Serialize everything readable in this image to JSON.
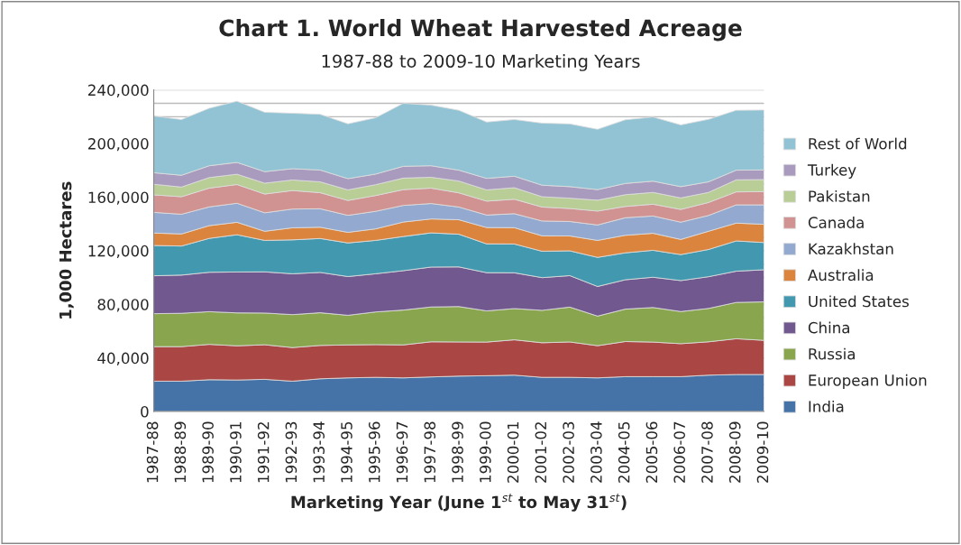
{
  "chart_data": {
    "type": "area",
    "stacked": true,
    "title": "Chart 1. World Wheat Harvested Acreage",
    "subtitle": "1987-88 to 2009-10 Marketing Years",
    "xlabel": "Marketing Year (June 1$^{st}$ to May 31$^{st}$)",
    "ylabel": "1,000 Hectares",
    "categories": [
      "1987-88",
      "1988-89",
      "1989-90",
      "1990-91",
      "1991-92",
      "1992-93",
      "1993-94",
      "1994-95",
      "1995-96",
      "1996-97",
      "1997-98",
      "1998-99",
      "1999-00",
      "2000-01",
      "2001-02",
      "2002-03",
      "2003-04",
      "2004-05",
      "2005-06",
      "2006-07",
      "2007-08",
      "2008-09",
      "2009-10"
    ],
    "series": [
      {
        "name": "India",
        "color": "#4572a7",
        "values": [
          22600,
          22600,
          23700,
          23500,
          24000,
          22600,
          24400,
          25100,
          25500,
          25100,
          25800,
          26400,
          26700,
          27100,
          25500,
          25500,
          25100,
          26000,
          26000,
          26000,
          27100,
          27600,
          27600
        ]
      },
      {
        "name": "European Union",
        "color": "#aa4643",
        "values": [
          25800,
          25800,
          26400,
          25500,
          25800,
          25100,
          24900,
          24600,
          24400,
          24600,
          26200,
          25500,
          25100,
          26400,
          25800,
          26400,
          24000,
          26200,
          25800,
          24600,
          24900,
          26700,
          25500
        ]
      },
      {
        "name": "Russia",
        "color": "#89a54e",
        "values": [
          24600,
          24900,
          24400,
          24600,
          23700,
          24600,
          24400,
          22100,
          24400,
          26000,
          26000,
          26400,
          23300,
          23300,
          24200,
          26000,
          22100,
          24200,
          25800,
          24000,
          24900,
          27100,
          28700
        ]
      },
      {
        "name": "China",
        "color": "#71588f",
        "values": [
          28300,
          28500,
          29400,
          30500,
          30700,
          30500,
          30100,
          28900,
          28500,
          29400,
          29800,
          29600,
          28500,
          26700,
          24400,
          23500,
          22100,
          21900,
          22600,
          23100,
          23700,
          23300,
          24000
        ]
      },
      {
        "name": "United States",
        "color": "#4198af",
        "values": [
          22600,
          21700,
          25300,
          27800,
          23500,
          25300,
          25300,
          25100,
          24900,
          25500,
          25500,
          24400,
          21500,
          21500,
          19700,
          18500,
          21700,
          20100,
          20100,
          19400,
          20300,
          22600,
          20300
        ]
      },
      {
        "name": "Australia",
        "color": "#db843d",
        "values": [
          9300,
          9000,
          9500,
          9300,
          6800,
          9000,
          8400,
          7900,
          8600,
          10800,
          10400,
          10800,
          12200,
          12200,
          11500,
          11100,
          12700,
          13100,
          12700,
          11300,
          13600,
          13300,
          13600
        ]
      },
      {
        "name": "Kazakhstan",
        "color": "#93a9cf",
        "values": [
          15400,
          14700,
          14000,
          14200,
          13800,
          14000,
          13800,
          12700,
          13100,
          12400,
          11500,
          9500,
          9300,
          10400,
          11100,
          10800,
          11500,
          13100,
          12900,
          12900,
          11800,
          13600,
          14500
        ]
      },
      {
        "name": "Canada",
        "color": "#d19392",
        "values": [
          13100,
          13100,
          14000,
          14000,
          14000,
          13800,
          12000,
          11100,
          11800,
          11800,
          11500,
          10600,
          10400,
          10800,
          10400,
          9700,
          10400,
          8400,
          8800,
          9500,
          9700,
          9700,
          9900
        ]
      },
      {
        "name": "Pakistan",
        "color": "#b9cd96",
        "values": [
          7900,
          7200,
          7900,
          7700,
          8100,
          7900,
          8100,
          7900,
          8100,
          8600,
          8100,
          8800,
          8400,
          8600,
          7700,
          7700,
          8100,
          8800,
          8800,
          8600,
          7500,
          9000,
          9000
        ]
      },
      {
        "name": "Turkey",
        "color": "#a99bbd",
        "values": [
          8600,
          8800,
          8800,
          8800,
          8600,
          8400,
          8800,
          8400,
          7900,
          8800,
          8600,
          8100,
          8600,
          8600,
          8600,
          8600,
          7900,
          8400,
          8400,
          8400,
          7900,
          7200,
          7200
        ]
      },
      {
        "name": "Rest of World",
        "color": "#92c3d4",
        "values": [
          42300,
          41600,
          42900,
          45700,
          44300,
          41400,
          41600,
          40900,
          42000,
          47000,
          45200,
          44700,
          42000,
          42300,
          46300,
          46800,
          45000,
          47500,
          47900,
          46100,
          46600,
          44700,
          44700
        ]
      }
    ],
    "ylim": [
      0,
      240000
    ],
    "yticks": [
      {
        "value": 0,
        "label": "0"
      },
      {
        "value": 10000,
        "label": null
      },
      {
        "value": 20000,
        "label": null
      },
      {
        "value": 30000,
        "label": null
      },
      {
        "value": 40000,
        "label": "40,000"
      },
      {
        "value": 50000,
        "label": null
      },
      {
        "value": 60000,
        "label": null
      },
      {
        "value": 70000,
        "label": null
      },
      {
        "value": 80000,
        "label": "80,000"
      },
      {
        "value": 90000,
        "label": null
      },
      {
        "value": 100000,
        "label": null
      },
      {
        "value": 110000,
        "label": null
      },
      {
        "value": 120000,
        "label": "120,000"
      },
      {
        "value": 130000,
        "label": null
      },
      {
        "value": 140000,
        "label": null
      },
      {
        "value": 150000,
        "label": null
      },
      {
        "value": 160000,
        "label": "160,000"
      },
      {
        "value": 170000,
        "label": null
      },
      {
        "value": 180000,
        "label": null
      },
      {
        "value": 190000,
        "label": null
      },
      {
        "value": 200000,
        "label": "200,000"
      },
      {
        "value": 210000,
        "label": null
      },
      {
        "value": 220000,
        "label": null
      },
      {
        "value": 230000,
        "label": null
      },
      {
        "value": 240000,
        "label": "240,000"
      }
    ],
    "grid": "y",
    "legend": "right"
  }
}
